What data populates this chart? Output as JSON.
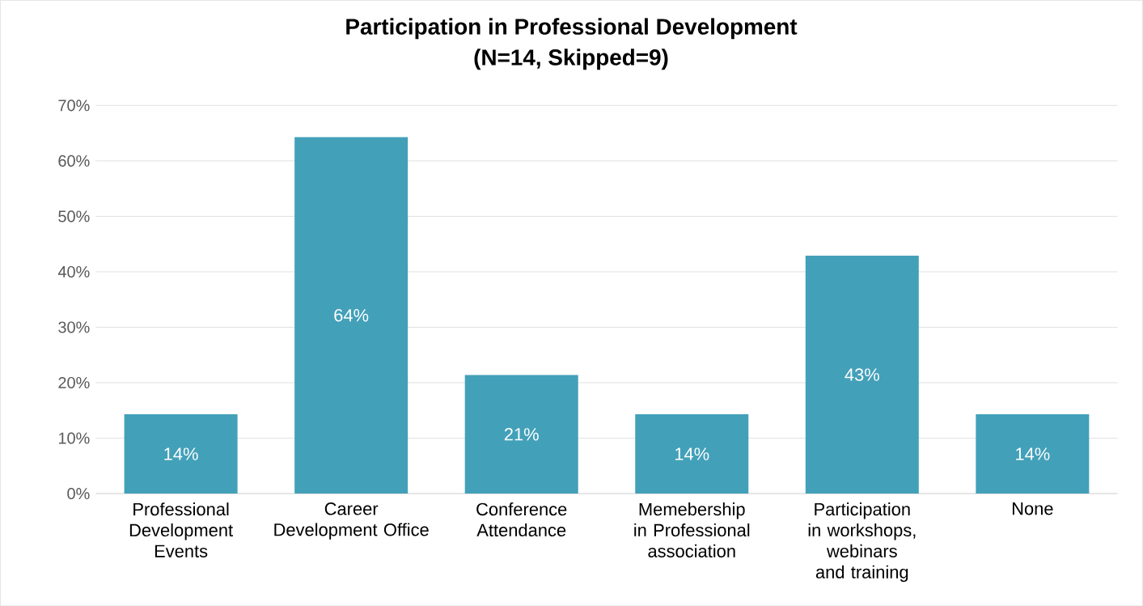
{
  "chart_data": {
    "type": "bar",
    "title": "Participation in Professional Development",
    "subtitle": "(N=14, Skipped=9)",
    "categories": [
      "Professional Development Events",
      "Career Development Office",
      "Conference Attendance",
      "Memebership in Professional association",
      "Participation in workshops, webinars and training",
      "None"
    ],
    "values": [
      14.3,
      64.3,
      21.4,
      14.3,
      42.9,
      14.3
    ],
    "value_labels": [
      "14%",
      "64%",
      "21%",
      "14%",
      "43%",
      "14%"
    ],
    "color": "#43a0b9",
    "ylim": [
      0,
      70
    ],
    "yticks": [
      {
        "value": 0,
        "label": "0%"
      },
      {
        "value": 10,
        "label": "10%"
      },
      {
        "value": 20,
        "label": "20%"
      },
      {
        "value": 30,
        "label": "30%"
      },
      {
        "value": 40,
        "label": "40%"
      },
      {
        "value": 50,
        "label": "50%"
      },
      {
        "value": 60,
        "label": "60%"
      },
      {
        "value": 70,
        "label": "70%"
      }
    ],
    "grid": "y"
  }
}
